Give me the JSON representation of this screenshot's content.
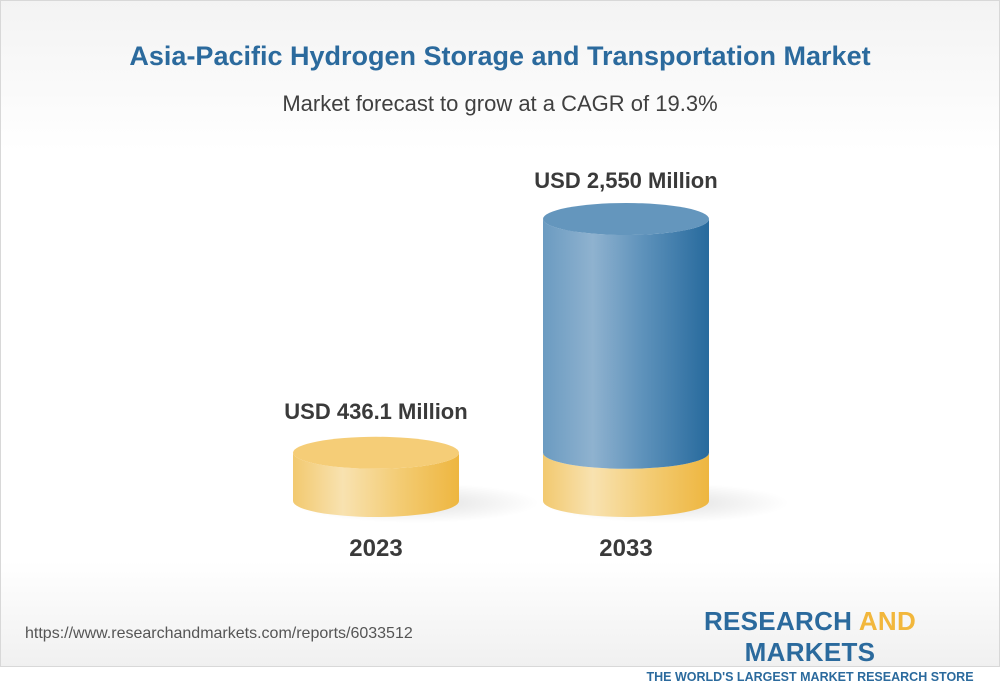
{
  "title": "Asia-Pacific Hydrogen Storage and Transportation Market",
  "subtitle": "Market forecast to grow at a CAGR of 19.3%",
  "chart_data": {
    "type": "bar",
    "style": "3d-cylinder",
    "categories": [
      "2023",
      "2033"
    ],
    "values": [
      436.1,
      2550
    ],
    "data_labels": [
      "USD 436.1 Million",
      "USD 2,550 Million"
    ],
    "unit": "USD Million",
    "colors": {
      "base": "#f2c462",
      "growth": "#2d6a9c"
    }
  },
  "footer": {
    "url": "https://www.researchandmarkets.com/reports/6033512",
    "logo_part1": "RESEARCH ",
    "logo_part2": "AND",
    "logo_part3": " MARKETS",
    "logo_tagline": "THE WORLD'S LARGEST MARKET RESEARCH STORE"
  }
}
